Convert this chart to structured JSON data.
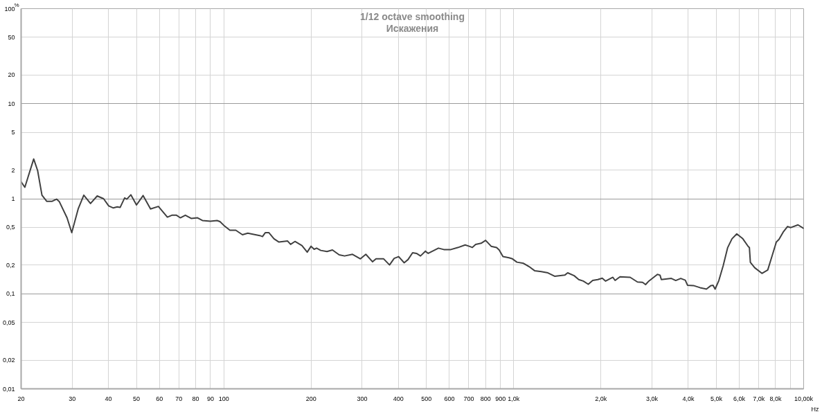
{
  "chart_data": {
    "type": "line",
    "subtitle": "1/12 octave smoothing",
    "title": "Искажения",
    "xlabel": "Hz",
    "ylabel": "%",
    "log": "xy",
    "grid": true,
    "xlim": [
      20,
      10000
    ],
    "ylim": [
      0.01,
      100
    ],
    "xticks": [
      20,
      30,
      40,
      50,
      60,
      70,
      80,
      90,
      100,
      200,
      300,
      400,
      500,
      600,
      700,
      800,
      900,
      {
        "value": 1000,
        "label": "1,0k"
      },
      {
        "value": 2000,
        "label": "2,0k"
      },
      {
        "value": 3000,
        "label": "3,0k"
      },
      {
        "value": 4000,
        "label": "4,0k"
      },
      {
        "value": 5000,
        "label": "5,0k"
      },
      {
        "value": 6000,
        "label": "6,0k"
      },
      {
        "value": 7000,
        "label": "7,0k"
      },
      {
        "value": 8000,
        "label": "8,0k"
      },
      {
        "value": 9000,
        "label": null
      },
      {
        "value": 10000,
        "label": "10,00k"
      }
    ],
    "yticks": [
      {
        "value": 0.01,
        "label": "0,01"
      },
      {
        "value": 0.02,
        "label": "0,02"
      },
      {
        "value": 0.05,
        "label": "0,05"
      },
      {
        "value": 0.1,
        "label": "0,1"
      },
      {
        "value": 0.2,
        "label": "0,2"
      },
      {
        "value": 0.5,
        "label": "0,5"
      },
      1,
      2,
      5,
      10,
      20,
      50,
      100
    ],
    "x": [
      20,
      20.6,
      22.1,
      22.8,
      23.6,
      24.5,
      25.6,
      26.5,
      27.1,
      28.8,
      29.9,
      31.5,
      32.9,
      34.7,
      36.6,
      38.5,
      40.1,
      41.6,
      42.9,
      43.9,
      45.5,
      46.3,
      47.8,
      50,
      52.7,
      55.9,
      59.5,
      63.9,
      66.2,
      68.7,
      70.8,
      73.7,
      77.2,
      81.2,
      84.4,
      89.9,
      94.8,
      97,
      100,
      105,
      110,
      116,
      121,
      133,
      136,
      139,
      143,
      149,
      155,
      166,
      170,
      176,
      186,
      194,
      200,
      205,
      209,
      216,
      227,
      237,
      250,
      261,
      278,
      296,
      309,
      326,
      335,
      356,
      373,
      387,
      401,
      419,
      432,
      448,
      462,
      477,
      496,
      507,
      550,
      574,
      607,
      641,
      680,
      702,
      720,
      739,
      772,
      800,
      836,
      873,
      891,
      918,
      963,
      990,
      1026,
      1081,
      1130,
      1180,
      1245,
      1312,
      1384,
      1500,
      1535,
      1616,
      1676,
      1737,
      1808,
      1872,
      1950,
      2020,
      2075,
      2198,
      2237,
      2325,
      2522,
      2672,
      2783,
      2850,
      2924,
      3131,
      3196,
      3230,
      3497,
      3621,
      3768,
      3906,
      3976,
      4170,
      4390,
      4620,
      4790,
      4870,
      4950,
      5100,
      5280,
      5470,
      5660,
      5880,
      6170,
      6440,
      6500,
      6550,
      6780,
      7180,
      7520,
      7790,
      8050,
      8220,
      8500,
      8800,
      9030,
      9560,
      9980
    ],
    "series": [
      {
        "color": "#404040",
        "values": [
          1.51,
          1.32,
          2.62,
          1.98,
          1.09,
          0.94,
          0.94,
          0.99,
          0.93,
          0.63,
          0.44,
          0.79,
          1.09,
          0.89,
          1.07,
          1.0,
          0.84,
          0.8,
          0.82,
          0.81,
          1.02,
          0.99,
          1.1,
          0.86,
          1.08,
          0.78,
          0.83,
          0.64,
          0.67,
          0.67,
          0.63,
          0.67,
          0.62,
          0.63,
          0.59,
          0.58,
          0.59,
          0.575,
          0.525,
          0.466,
          0.466,
          0.418,
          0.434,
          0.41,
          0.4,
          0.439,
          0.44,
          0.379,
          0.35,
          0.359,
          0.331,
          0.355,
          0.322,
          0.274,
          0.316,
          0.294,
          0.302,
          0.286,
          0.278,
          0.289,
          0.257,
          0.25,
          0.26,
          0.233,
          0.26,
          0.217,
          0.233,
          0.233,
          0.201,
          0.236,
          0.246,
          0.212,
          0.229,
          0.27,
          0.266,
          0.25,
          0.281,
          0.266,
          0.302,
          0.292,
          0.292,
          0.306,
          0.326,
          0.316,
          0.307,
          0.331,
          0.34,
          0.365,
          0.316,
          0.306,
          0.289,
          0.246,
          0.239,
          0.233,
          0.215,
          0.209,
          0.193,
          0.175,
          0.171,
          0.166,
          0.153,
          0.157,
          0.166,
          0.155,
          0.141,
          0.136,
          0.126,
          0.138,
          0.141,
          0.146,
          0.136,
          0.149,
          0.138,
          0.151,
          0.149,
          0.133,
          0.132,
          0.125,
          0.136,
          0.16,
          0.157,
          0.141,
          0.145,
          0.138,
          0.145,
          0.139,
          0.123,
          0.122,
          0.116,
          0.112,
          0.122,
          0.123,
          0.112,
          0.138,
          0.198,
          0.306,
          0.379,
          0.427,
          0.379,
          0.314,
          0.306,
          0.214,
          0.188,
          0.164,
          0.178,
          0.253,
          0.35,
          0.373,
          0.446,
          0.51,
          0.497,
          0.531,
          0.489
        ]
      }
    ]
  }
}
